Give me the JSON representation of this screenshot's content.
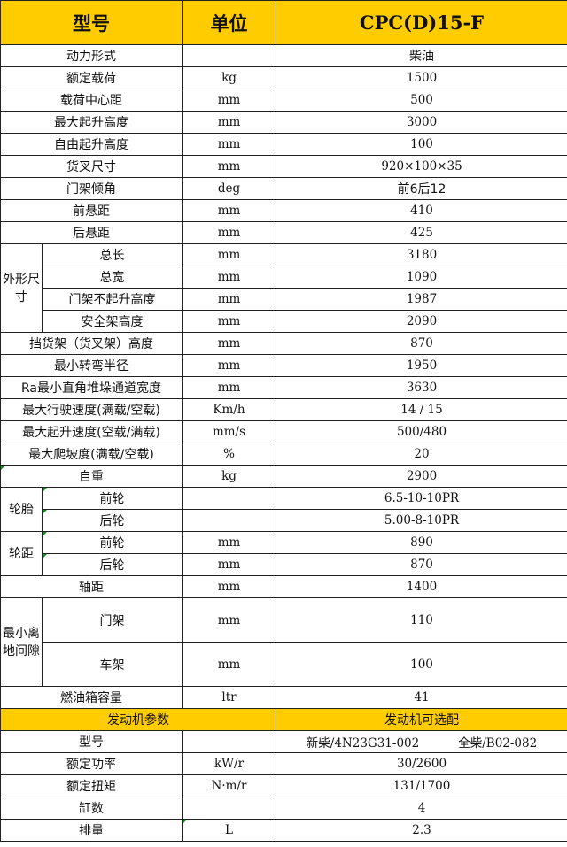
{
  "header": {
    "model_label": "型号",
    "unit_label": "单位",
    "model_value": "CPC(D)15-F"
  },
  "rows": [
    {
      "label": "动力形式",
      "unit": "",
      "value": "柴油"
    },
    {
      "label": "额定载荷",
      "unit": "kg",
      "value": "1500"
    },
    {
      "label": "载荷中心距",
      "unit": "mm",
      "value": "500"
    },
    {
      "label": "最大起升高度",
      "unit": "mm",
      "value": "3000"
    },
    {
      "label": "自由起升高度",
      "unit": "mm",
      "value": "100"
    },
    {
      "label": "货叉尺寸",
      "unit": "mm",
      "value": "920×100×35"
    },
    {
      "label": "门架倾角",
      "unit": "deg",
      "value": "前6后12"
    },
    {
      "label": "前悬距",
      "unit": "mm",
      "value": "410"
    },
    {
      "label": "后悬距",
      "unit": "mm",
      "value": "425"
    },
    {
      "group": "外形尺寸",
      "span": 4,
      "label": "总长",
      "unit": "mm",
      "value": "3180"
    },
    {
      "label": "总宽",
      "unit": "mm",
      "value": "1090",
      "sub": true
    },
    {
      "label": "门架不起升高度",
      "unit": "mm",
      "value": "1987",
      "sub": true
    },
    {
      "label": "安全架高度",
      "unit": "mm",
      "value": "2090",
      "sub": true
    },
    {
      "label": "挡货架（货叉架）高度",
      "unit": "mm",
      "value": "870"
    },
    {
      "label": "最小转弯半径",
      "unit": "mm",
      "value": "1950"
    },
    {
      "label": "Ra最小直角堆垛通道宽度",
      "unit": "mm",
      "value": "3630"
    },
    {
      "label": "最大行驶速度(满载/空载)",
      "unit": "Km/h",
      "value": "14 / 15"
    },
    {
      "label": "最大起升速度(空载/满载)",
      "unit": "mm/s",
      "value": "500/480"
    },
    {
      "label": "最大爬坡度(满载/空载)",
      "unit": "%",
      "value": "20"
    },
    {
      "label": "自重",
      "unit": "kg",
      "value": "2900",
      "mark": true
    },
    {
      "group": "轮胎",
      "span": 2,
      "label": "前轮",
      "unit": "",
      "value": "6.5-10-10PR",
      "mark": true
    },
    {
      "label": "后轮",
      "unit": "",
      "value": "5.00-8-10PR",
      "sub": true,
      "mark": true
    },
    {
      "group": "轮距",
      "span": 2,
      "label": "前轮",
      "unit": "mm",
      "value": "890",
      "mark": true
    },
    {
      "label": "后轮",
      "unit": "mm",
      "value": "870",
      "sub": true,
      "mark": true
    },
    {
      "label": "轴距",
      "unit": "mm",
      "value": "1400"
    },
    {
      "group": "最小离地间隙",
      "span": 2,
      "label": "门架",
      "unit": "mm",
      "value": "110",
      "tall": true
    },
    {
      "label": "车架",
      "unit": "mm",
      "value": "100",
      "sub": true,
      "tall": true
    },
    {
      "label": "燃油箱容量",
      "unit": "ltr",
      "value": "41"
    }
  ],
  "engine_section": {
    "left": "发动机参数",
    "right": "发动机可选配"
  },
  "engine_rows": [
    {
      "label": "型号",
      "unit": "",
      "value": [
        "新柴/4N23G31-002",
        "全柴/B02-082"
      ]
    },
    {
      "label": "额定功率",
      "unit": "kW/r",
      "value": "30/2600"
    },
    {
      "label": "额定扭矩",
      "unit": "N·m/r",
      "value": "131/1700"
    },
    {
      "label": "缸数",
      "unit": "",
      "value": "4"
    },
    {
      "label": "排量",
      "unit": "L",
      "value": "2.3",
      "unit_mark": true
    }
  ],
  "colors": {
    "header_bg": "#ffcc00",
    "mark": "#1a8a2a"
  }
}
